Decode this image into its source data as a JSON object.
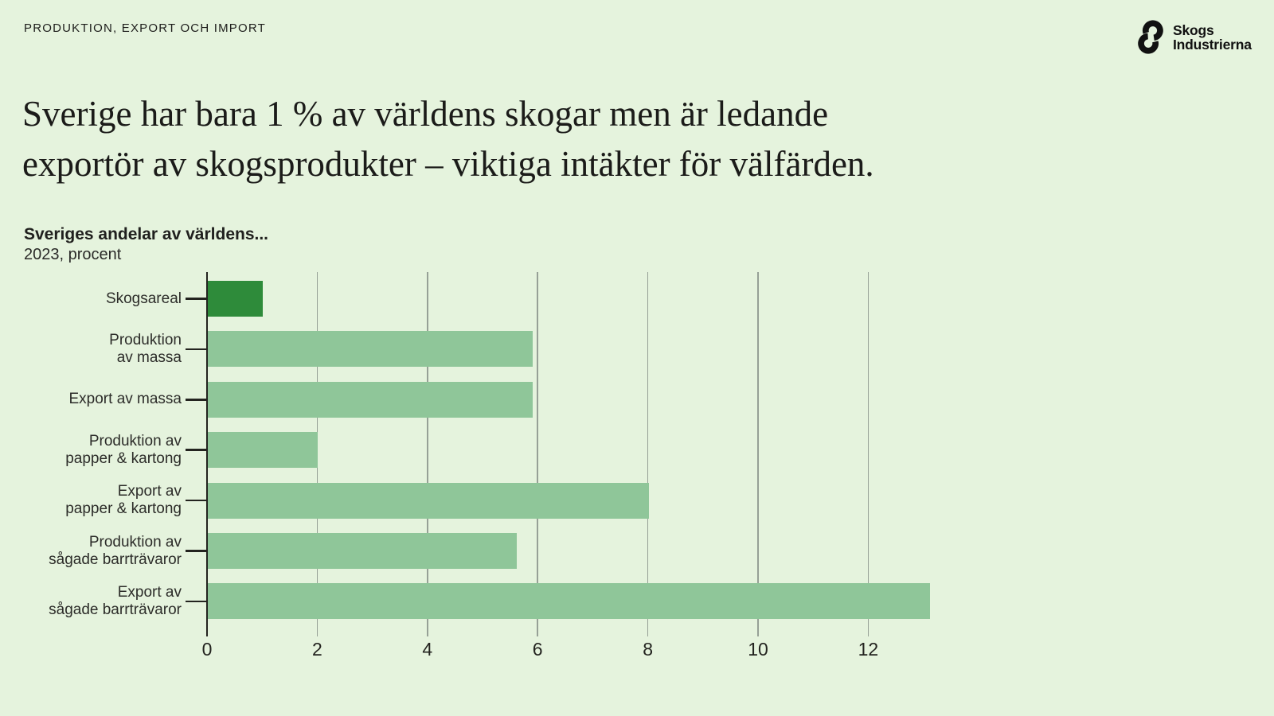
{
  "kicker": "PRODUKTION, EXPORT OCH IMPORT",
  "logo": {
    "line1": "Skogs",
    "line2": "Industrierna"
  },
  "title": {
    "line1": "Sverige har bara 1 % av världens skogar men är ledande",
    "line2": "exportör av skogsprodukter – viktiga intäkter för välfärden."
  },
  "chart_data": {
    "type": "bar",
    "orientation": "horizontal",
    "title": "Sveriges andelar av världens...",
    "subtitle": "2023, procent",
    "categories": [
      "Skogsareal",
      "Produktion av massa",
      "Export av massa",
      "Produktion av papper & kartong",
      "Export av papper & kartong",
      "Produktion av sågade barrträvaror",
      "Export av sågade barrträvaror"
    ],
    "category_lines": [
      [
        "Skogsareal"
      ],
      [
        "Produktion",
        "av massa"
      ],
      [
        "Export av massa"
      ],
      [
        "Produktion av",
        "papper & kartong"
      ],
      [
        "Export av",
        "papper & kartong"
      ],
      [
        "Produktion av",
        "sågade barrträvaror"
      ],
      [
        "Export av",
        "sågade barrträvaror"
      ]
    ],
    "values": [
      1,
      5.9,
      5.9,
      2,
      8,
      5.6,
      13.1
    ],
    "xlabel": "",
    "ylabel": "",
    "xlim": [
      0,
      13.5
    ],
    "xticks": [
      0,
      2,
      4,
      6,
      8,
      10,
      12
    ],
    "grid": true,
    "legend": false,
    "colors": {
      "background": "#e5f3dd",
      "default_bar": "#8fc699",
      "highlight_bar": "#2e8b3a",
      "highlight_index": 0,
      "gridline": "#96a096",
      "axis": "#23231f",
      "text": "#1d1d1b"
    }
  }
}
